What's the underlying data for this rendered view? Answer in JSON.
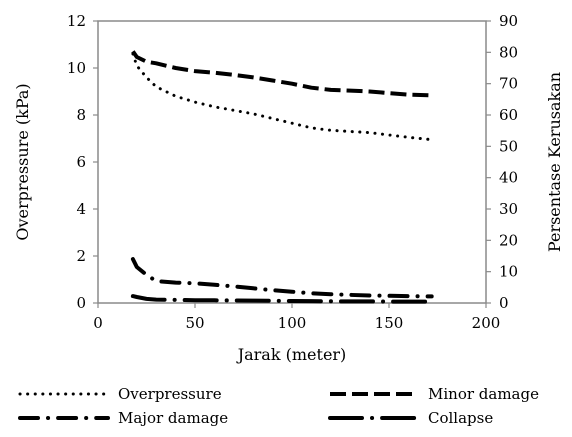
{
  "chart_data": {
    "type": "line",
    "title": "",
    "xlabel": "Jarak (meter)",
    "ylabel_left": "Overpressure (kPa)",
    "ylabel_right": "Persentase Kerusakan",
    "xlim": [
      0,
      200
    ],
    "ylim_left": [
      0,
      12
    ],
    "ylim_right": [
      0,
      90
    ],
    "x_ticks": [
      "0",
      "50",
      "100",
      "150",
      "200"
    ],
    "y_left_ticks": [
      "0",
      "2",
      "4",
      "6",
      "8",
      "10",
      "12"
    ],
    "y_right_ticks": [
      "0",
      "10",
      "20",
      "30",
      "40",
      "50",
      "60",
      "70",
      "80",
      "90"
    ],
    "grid": false,
    "legend_position": "bottom",
    "series": [
      {
        "name": "Overpressure",
        "axis": "left",
        "style": "dotted",
        "color": "#000000",
        "x": [
          18,
          20,
          25,
          30,
          40,
          50,
          60,
          70,
          80,
          90,
          100,
          110,
          120,
          130,
          140,
          150,
          160,
          172
        ],
        "y": [
          10.6,
          10.1,
          9.6,
          9.2,
          8.8,
          8.55,
          8.35,
          8.2,
          8.05,
          7.85,
          7.65,
          7.45,
          7.35,
          7.3,
          7.25,
          7.15,
          7.05,
          6.95
        ]
      },
      {
        "name": "Minor damage",
        "axis": "right",
        "style": "dashed",
        "color": "#000000",
        "x": [
          18,
          20,
          25,
          30,
          40,
          50,
          60,
          70,
          80,
          90,
          100,
          110,
          120,
          130,
          140,
          150,
          160,
          172
        ],
        "y": [
          80.3,
          78.5,
          77,
          76.5,
          75,
          74,
          73.5,
          72.8,
          72,
          71,
          70,
          68.7,
          68,
          67.8,
          67.5,
          67,
          66.5,
          66.3
        ]
      },
      {
        "name": "Major damage",
        "axis": "right",
        "style": "dash-dot",
        "color": "#000000",
        "x": [
          18,
          20,
          25,
          30,
          40,
          50,
          60,
          70,
          80,
          90,
          100,
          110,
          120,
          130,
          140,
          150,
          160,
          172
        ],
        "y": [
          14,
          11.5,
          9,
          7,
          6.5,
          6.3,
          5.8,
          5.3,
          4.7,
          4.1,
          3.6,
          3.1,
          2.8,
          2.6,
          2.4,
          2.3,
          2.2,
          2.1
        ]
      },
      {
        "name": "Collapse",
        "axis": "right",
        "style": "long-dash-dot",
        "color": "#000000",
        "x": [
          18,
          20,
          25,
          30,
          40,
          50,
          60,
          70,
          80,
          90,
          100,
          110,
          120,
          130,
          140,
          150,
          160,
          172
        ],
        "y": [
          2.2,
          1.9,
          1.3,
          1.1,
          1.0,
          0.9,
          0.85,
          0.8,
          0.75,
          0.7,
          0.65,
          0.6,
          0.55,
          0.5,
          0.5,
          0.45,
          0.45,
          0.4
        ]
      }
    ]
  }
}
